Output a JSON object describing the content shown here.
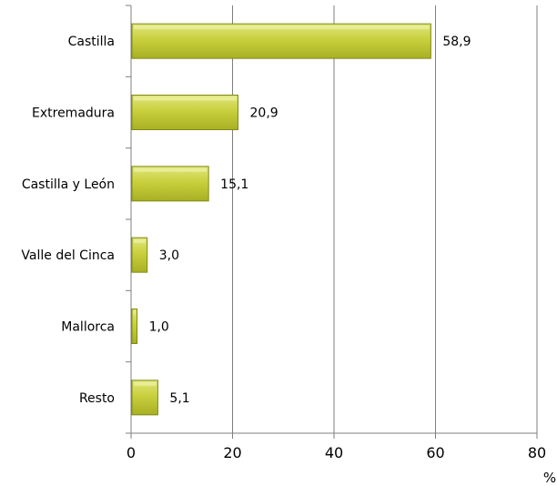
{
  "chart_data": {
    "type": "bar",
    "orientation": "horizontal",
    "categories": [
      "Castilla",
      "Extremadura",
      "Castilla y León",
      "Valle del Cinca",
      "Mallorca",
      "Resto"
    ],
    "values": [
      58.9,
      20.9,
      15.1,
      3.0,
      1.0,
      5.1
    ],
    "value_labels": [
      "58,9",
      "20,9",
      "15,1",
      "3,0",
      "1,0",
      "5,1"
    ],
    "xlim": [
      0,
      80
    ],
    "x_ticks": [
      0,
      20,
      40,
      60,
      80
    ],
    "x_unit": "%",
    "grid": "vertical",
    "bar_color": "#c8cf3c",
    "bar_border_color": "#7f8a16"
  }
}
